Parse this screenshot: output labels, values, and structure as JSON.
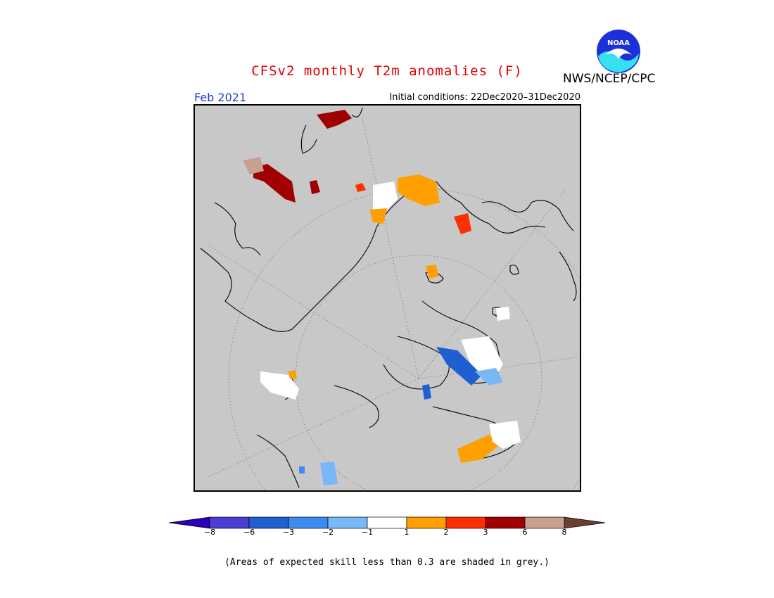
{
  "title": "CFSv2 monthly T2m anomalies (F)",
  "organization": "NWS/NCEP/CPC",
  "logo_text": "NOAA",
  "period": "Feb 2021",
  "initial_conditions": "Initial conditions: 22Dec2020–31Dec2020",
  "footnote": "(Areas of expected skill less than 0.3 are shaded in grey.)",
  "colors": {
    "skill_mask": "#c8c8c8",
    "title": "#e00000",
    "period": "#1a3fd0"
  },
  "legend": {
    "labels": [
      "−8",
      "−6",
      "−3",
      "−2",
      "−1",
      "1",
      "2",
      "3",
      "6",
      "8"
    ],
    "colors": [
      "#2b00b8",
      "#4a3fd0",
      "#1f5fd0",
      "#3c8cf0",
      "#79b8f8",
      "#ffffff",
      "#ffa000",
      "#ff3000",
      "#a00000",
      "#c8a090",
      "#6b4030"
    ]
  }
}
